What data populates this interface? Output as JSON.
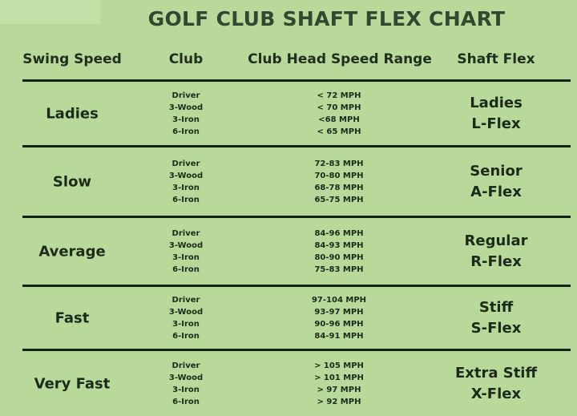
{
  "title": "GOLF CLUB SHAFT FLEX CHART",
  "headers": [
    "Swing Speed",
    "Club",
    "Club Head Speed Range",
    "Shaft Flex"
  ],
  "rows": [
    {
      "speed": "Ladies",
      "clubs": [
        "Driver",
        "3-Wood",
        "3-Iron",
        "6-Iron"
      ],
      "ranges": [
        "< 72 MPH",
        "< 70 MPH",
        "<68 MPH",
        "< 65 MPH"
      ],
      "flex": [
        "Ladies",
        "L-Flex"
      ]
    },
    {
      "speed": "Slow",
      "clubs": [
        "Driver",
        "3-Wood",
        "3-Iron",
        "6-Iron"
      ],
      "ranges": [
        "72-83 MPH",
        "70-80 MPH",
        "68-78 MPH",
        "65-75 MPH"
      ],
      "flex": [
        "Senior",
        "A-Flex"
      ]
    },
    {
      "speed": "Average",
      "clubs": [
        "Driver",
        "3-Wood",
        "3-Iron",
        "6-Iron"
      ],
      "ranges": [
        "84-96 MPH",
        "84-93 MPH",
        "80-90 MPH",
        "75-83 MPH"
      ],
      "flex": [
        "Regular",
        "R-Flex"
      ]
    },
    {
      "speed": "Fast",
      "clubs": [
        "Driver",
        "3-Wood",
        "3-Iron",
        "6-Iron"
      ],
      "ranges": [
        "97-104 MPH",
        "93-97 MPH",
        "90-96 MPH",
        "84-91 MPH"
      ],
      "flex": [
        "Stiff",
        "S-Flex"
      ]
    },
    {
      "speed": "Very Fast",
      "clubs": [
        "Driver",
        "3-Wood",
        "3-Iron",
        "6-Iron"
      ],
      "ranges": [
        "> 105 MPH",
        "> 101 MPH",
        "> 97 MPH",
        "> 92 MPH"
      ],
      "flex": [
        "Extra Stiff",
        "X-Flex"
      ]
    }
  ],
  "colors": {
    "background": "#b9d99b",
    "title": "#2f4a30",
    "divider": "#15241a"
  }
}
